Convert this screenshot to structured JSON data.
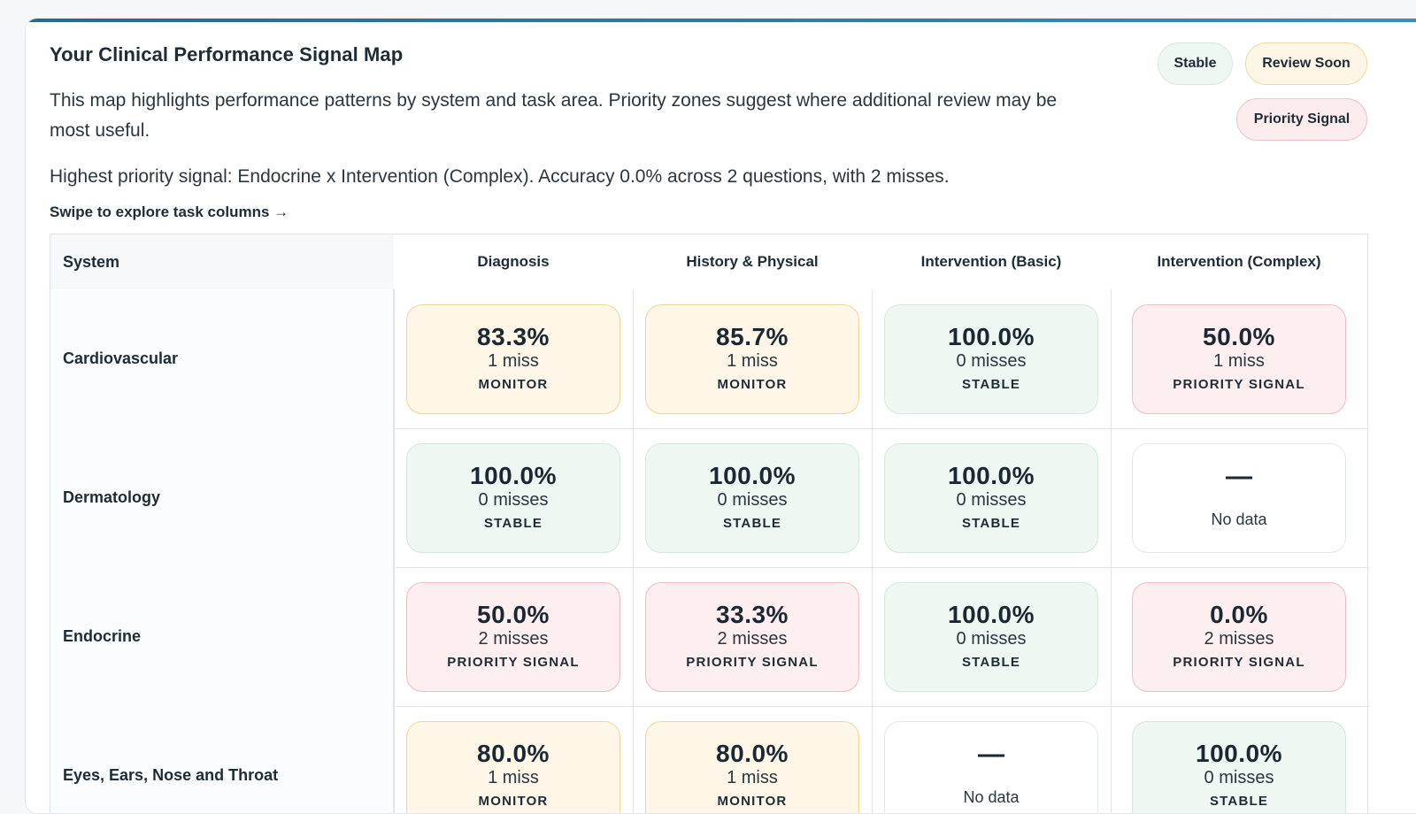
{
  "card": {
    "title": "Your Clinical Performance Signal Map",
    "description": "This map highlights performance patterns by system and task area. Priority zones suggest where additional review may be most useful.",
    "highest_priority": "Highest priority signal: Endocrine x Intervention (Complex). Accuracy 0.0% across 2 questions, with 2 misses.",
    "swipe_hint": "Swipe to explore task columns →"
  },
  "legend": {
    "stable": "Stable",
    "review_soon": "Review Soon",
    "priority_signal": "Priority Signal"
  },
  "colors": {
    "accent": "#2f7d93",
    "monitor_bg": "#fef7e8",
    "stable_bg": "#eef7f1",
    "priority_bg": "#fdeef0"
  },
  "table": {
    "system_header": "System",
    "columns": [
      "Diagnosis",
      "History & Physical",
      "Intervention (Basic)",
      "Intervention (Complex)"
    ],
    "rows": [
      {
        "system": "Cardiovascular",
        "cells": [
          {
            "kind": "monitor",
            "pct": "83.3%",
            "miss": "1 miss",
            "status": "MONITOR"
          },
          {
            "kind": "monitor",
            "pct": "85.7%",
            "miss": "1 miss",
            "status": "MONITOR"
          },
          {
            "kind": "stable",
            "pct": "100.0%",
            "miss": "0 misses",
            "status": "STABLE"
          },
          {
            "kind": "priority",
            "pct": "50.0%",
            "miss": "1 miss",
            "status": "PRIORITY SIGNAL"
          }
        ]
      },
      {
        "system": "Dermatology",
        "cells": [
          {
            "kind": "stable",
            "pct": "100.0%",
            "miss": "0 misses",
            "status": "STABLE"
          },
          {
            "kind": "stable",
            "pct": "100.0%",
            "miss": "0 misses",
            "status": "STABLE"
          },
          {
            "kind": "stable",
            "pct": "100.0%",
            "miss": "0 misses",
            "status": "STABLE"
          },
          {
            "kind": "nodata",
            "dash": "—",
            "nodata": "No data"
          }
        ]
      },
      {
        "system": "Endocrine",
        "cells": [
          {
            "kind": "priority",
            "pct": "50.0%",
            "miss": "2 misses",
            "status": "PRIORITY SIGNAL"
          },
          {
            "kind": "priority",
            "pct": "33.3%",
            "miss": "2 misses",
            "status": "PRIORITY SIGNAL"
          },
          {
            "kind": "stable",
            "pct": "100.0%",
            "miss": "0 misses",
            "status": "STABLE"
          },
          {
            "kind": "priority",
            "pct": "0.0%",
            "miss": "2 misses",
            "status": "PRIORITY SIGNAL"
          }
        ]
      },
      {
        "system": "Eyes, Ears, Nose and Throat",
        "cells": [
          {
            "kind": "monitor",
            "pct": "80.0%",
            "miss": "1 miss",
            "status": "MONITOR"
          },
          {
            "kind": "monitor",
            "pct": "80.0%",
            "miss": "1 miss",
            "status": "MONITOR"
          },
          {
            "kind": "nodata",
            "dash": "—",
            "nodata": "No data"
          },
          {
            "kind": "stable",
            "pct": "100.0%",
            "miss": "0 misses",
            "status": "STABLE"
          }
        ]
      }
    ]
  }
}
